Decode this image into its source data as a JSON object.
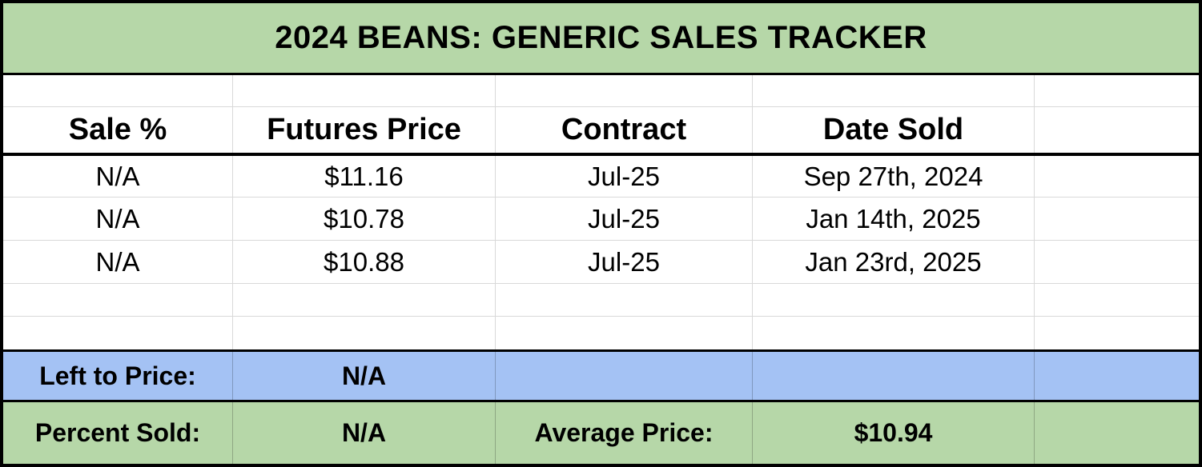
{
  "title": "2024 BEANS: GENERIC SALES TRACKER",
  "table": {
    "columns": [
      "Sale %",
      "Futures Price",
      "Contract",
      "Date Sold",
      ""
    ],
    "rows": [
      [
        "N/A",
        "$11.16",
        "Jul-25",
        "Sep 27th, 2024",
        ""
      ],
      [
        "N/A",
        "$10.78",
        "Jul-25",
        "Jan 14th, 2025",
        ""
      ],
      [
        "N/A",
        "$10.88",
        "Jul-25",
        "Jan 23rd, 2025",
        ""
      ]
    ]
  },
  "summary": {
    "left_to_price_label": "Left to Price:",
    "left_to_price_value": "N/A",
    "percent_sold_label": "Percent Sold:",
    "percent_sold_value": "N/A",
    "average_price_label": "Average Price:",
    "average_price_value": "$10.94"
  },
  "colors": {
    "title_bg": "#b6d7a8",
    "left_to_price_bg": "#a4c2f4",
    "percent_sold_bg": "#b6d7a8",
    "gridline": "#d9d9d9",
    "heavy_border": "#000000",
    "text": "#000000"
  }
}
